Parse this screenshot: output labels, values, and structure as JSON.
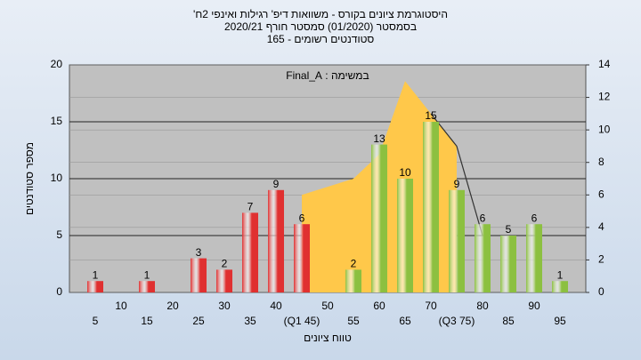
{
  "chart_data": {
    "type": "bar",
    "title": "היסטוגרמת ציונים בקורס - משוואות דיפ' רגילות ואינפי 2ח'",
    "subtitle": "בסמסטר (01/2020) סמסטר חורף 2020/21",
    "subtitle2": "סטודנטים רשומים - 165",
    "annotation": "במשימה : Final_A",
    "x_label": "טווח ציונים",
    "y_label": "מספר סטודנטים",
    "categories": [
      "5",
      "10",
      "15",
      "20",
      "25",
      "30",
      "35",
      "40",
      "(Q1 45)",
      "50",
      "55",
      "60",
      "65",
      "70",
      "(Q3 75)",
      "80",
      "85",
      "90",
      "95"
    ],
    "values": [
      1,
      0,
      1,
      0,
      3,
      2,
      7,
      9,
      6,
      0,
      2,
      13,
      10,
      15,
      9,
      6,
      5,
      6,
      1
    ],
    "colors": [
      "#e03030",
      "#e03030",
      "#e03030",
      "#e03030",
      "#e03030",
      "#e03030",
      "#e03030",
      "#e03030",
      "#e03030",
      "#e03030",
      "#8cc040",
      "#8cc040",
      "#8cc040",
      "#8cc040",
      "#8cc040",
      "#8cc040",
      "#8cc040",
      "#8cc040",
      "#8cc040"
    ],
    "area": {
      "color": "#ffc84a",
      "axis": "y2",
      "values": [
        null,
        null,
        null,
        null,
        null,
        null,
        null,
        null,
        6,
        6.5,
        7,
        8.5,
        13,
        11,
        9,
        null,
        null,
        null,
        null
      ]
    },
    "line": {
      "color": "#333333",
      "axis": "y2",
      "values": [
        null,
        null,
        null,
        null,
        null,
        null,
        null,
        null,
        null,
        null,
        null,
        null,
        null,
        11,
        9,
        3.5,
        null,
        null,
        null
      ]
    },
    "ylim": [
      0,
      20
    ],
    "yticks": [
      0,
      5,
      10,
      15,
      20
    ],
    "y2lim": [
      0,
      14
    ],
    "y2ticks": [
      0,
      2,
      4,
      6,
      8,
      10,
      12,
      14
    ],
    "grid": true
  }
}
